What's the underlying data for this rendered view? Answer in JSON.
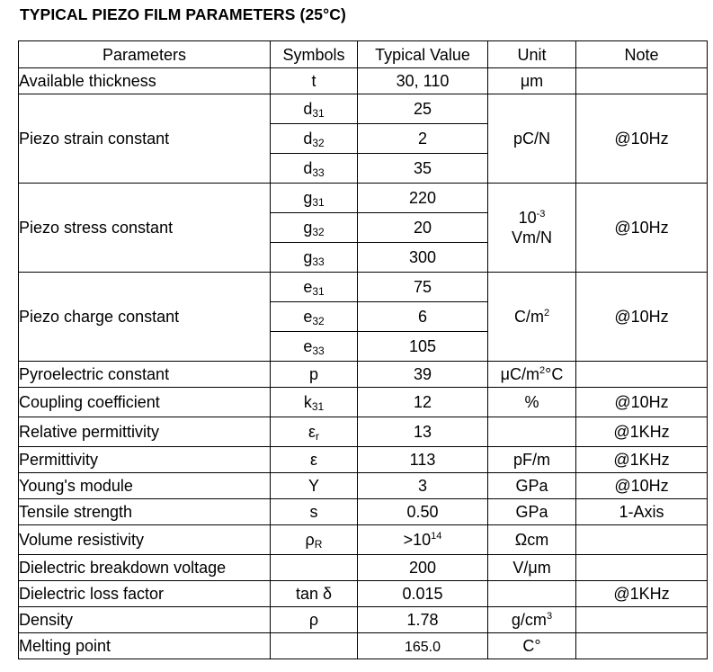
{
  "title": "TYPICAL PIEZO FILM PARAMETERS (25°C)",
  "headers": [
    "Parameters",
    "Symbols",
    "Typical Value",
    "Unit",
    "Note"
  ],
  "rows": {
    "thickness": {
      "param": "Available thickness",
      "symbol": "t",
      "value": "30, 110",
      "unit": "μm",
      "note": ""
    },
    "strain": {
      "param": "Piezo strain constant",
      "subs": [
        {
          "base": "d",
          "sub": "31",
          "value": "25"
        },
        {
          "base": "d",
          "sub": "32",
          "value": "2"
        },
        {
          "base": "d",
          "sub": "33",
          "value": "35"
        }
      ],
      "unit": "pC/N",
      "note": "@10Hz"
    },
    "stress": {
      "param": "Piezo stress constant",
      "subs": [
        {
          "base": "g",
          "sub": "31",
          "value": "220"
        },
        {
          "base": "g",
          "sub": "32",
          "value": "20"
        },
        {
          "base": "g",
          "sub": "33",
          "value": "300"
        }
      ],
      "unit_base": "10",
      "unit_sup": "-3",
      "unit_line2": "Vm/N",
      "note": "@10Hz"
    },
    "charge": {
      "param": "Piezo charge constant",
      "subs": [
        {
          "base": "e",
          "sub": "31",
          "value": "75"
        },
        {
          "base": "e",
          "sub": "32",
          "value": "6"
        },
        {
          "base": "e",
          "sub": "33",
          "value": "105"
        }
      ],
      "unit_base": "C/m",
      "unit_sup": "2",
      "note": "@10Hz"
    },
    "pyro": {
      "param": "Pyroelectric constant",
      "symbol": "p",
      "value": "39",
      "unit_a": "μC/m",
      "unit_sup": "2",
      "unit_b": "°C",
      "note": ""
    },
    "coupling": {
      "param": "Coupling coefficient",
      "symbol_base": "k",
      "symbol_sub": "31",
      "value": "12",
      "unit": "%",
      "note": "@10Hz"
    },
    "relperm": {
      "param": "Relative permittivity",
      "symbol_base": "ε",
      "symbol_sub": "r",
      "value": "13",
      "unit": "",
      "note": "@1KHz"
    },
    "perm": {
      "param": "Permittivity",
      "symbol": "ε",
      "value": "113",
      "unit": "pF/m",
      "note": "@1KHz"
    },
    "young": {
      "param": "Young's module",
      "symbol": "Y",
      "value": "3",
      "unit": "GPa",
      "note": "@10Hz"
    },
    "tensile": {
      "param": "Tensile strength",
      "symbol": "s",
      "value": "0.50",
      "unit": "GPa",
      "note": "1-Axis"
    },
    "resist": {
      "param": "Volume resistivity",
      "symbol_base": "ρ",
      "symbol_sub": "R",
      "value_base": ">10",
      "value_sup": "14",
      "unit": "Ωcm",
      "note": ""
    },
    "breakdown": {
      "param": "Dielectric breakdown voltage",
      "symbol": "",
      "value": "200",
      "unit": "V/μm",
      "note": ""
    },
    "loss": {
      "param": "Dielectric loss factor",
      "symbol": "tan δ",
      "value": "0.015",
      "unit": "",
      "note": "@1KHz"
    },
    "density": {
      "param": "Density",
      "symbol": "ρ",
      "value": "1.78",
      "unit_base": "g/cm",
      "unit_sup": "3",
      "note": ""
    },
    "melting": {
      "param": "Melting point",
      "symbol": "",
      "value": "165.0",
      "unit": "C°",
      "note": ""
    }
  }
}
